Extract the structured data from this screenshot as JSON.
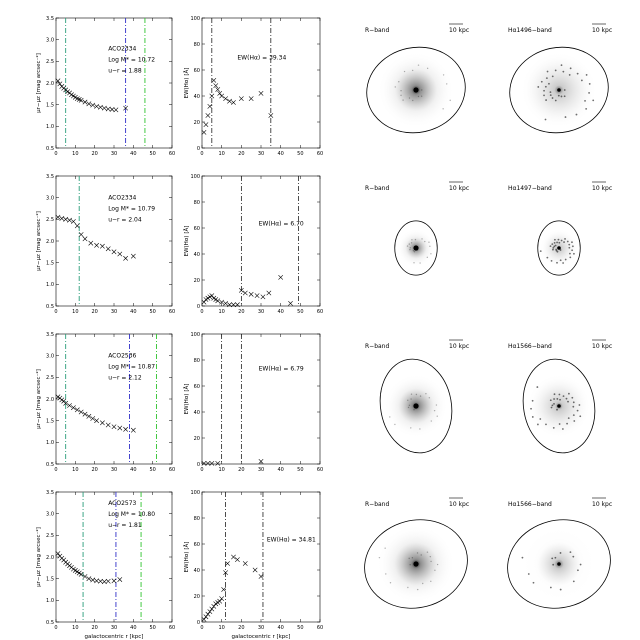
{
  "figure": {
    "x_axis_label": "galactocentric r [kpc]",
    "x_ticks": [
      "0",
      "10",
      "20",
      "30",
      "40",
      "50",
      "60"
    ],
    "color_ticks": [
      "0.5",
      "1.0",
      "1.5",
      "2.0",
      "2.5",
      "3.0",
      "3.5"
    ],
    "ew_ticks": [
      "0",
      "20",
      "40",
      "60",
      "80",
      "100"
    ],
    "color_ylabel": "μr−μz [mag arcsec⁻²]",
    "ew_ylabel": "EW(Hα) [Å]",
    "rows": [
      {
        "id": "ACO2334 (1)",
        "name": "ACO2334",
        "logm_label": "Log M* = 10.72",
        "ur_label": "u−r = 1.88",
        "ew_label": "EW(Hα) = 39.34",
        "r_band_label": "R−band",
        "ha_label": "Hα1496−band",
        "scale_label": "10 kpc",
        "ellipse": {
          "rx": 0.42,
          "ry": 0.36,
          "rot": -12
        },
        "ha_sparse": false,
        "color_vlines": [
          {
            "x": 5,
            "color": "#2a9d7a"
          },
          {
            "x": 36,
            "color": "#3030c8"
          },
          {
            "x": 46,
            "color": "#2ec42e"
          }
        ],
        "ew_vlines": [
          5,
          35
        ],
        "color_points": [
          [
            1,
            2.05
          ],
          [
            2,
            1.98
          ],
          [
            3,
            1.92
          ],
          [
            4,
            1.88
          ],
          [
            5,
            1.84
          ],
          [
            6,
            1.8
          ],
          [
            7,
            1.77
          ],
          [
            8,
            1.73
          ],
          [
            9,
            1.7
          ],
          [
            10,
            1.67
          ],
          [
            11,
            1.64
          ],
          [
            12,
            1.62
          ],
          [
            13,
            1.6
          ],
          [
            15,
            1.56
          ],
          [
            17,
            1.52
          ],
          [
            19,
            1.49
          ],
          [
            21,
            1.46
          ],
          [
            23,
            1.44
          ],
          [
            25,
            1.42
          ],
          [
            27,
            1.4
          ],
          [
            29,
            1.39
          ],
          [
            31,
            1.38
          ],
          [
            36,
            1.42
          ]
        ],
        "ew_points": [
          [
            1,
            12
          ],
          [
            2,
            18
          ],
          [
            3,
            25
          ],
          [
            4,
            32
          ],
          [
            5,
            40
          ],
          [
            6,
            52
          ],
          [
            7,
            48
          ],
          [
            8,
            45
          ],
          [
            9,
            42
          ],
          [
            10,
            40
          ],
          [
            12,
            38
          ],
          [
            14,
            36
          ],
          [
            16,
            35
          ],
          [
            20,
            38
          ],
          [
            25,
            38
          ],
          [
            30,
            42
          ],
          [
            35,
            25
          ]
        ]
      },
      {
        "id": "ACO2334 (2)",
        "name": "ACO2334",
        "logm_label": "Log M* = 10.79",
        "ur_label": "u−r = 2.04",
        "ew_label": "EW(Hα) = 6.70",
        "r_band_label": "R−band",
        "ha_label": "Hα1497−band",
        "scale_label": "10 kpc",
        "ellipse": {
          "rx": 0.18,
          "ry": 0.23,
          "rot": 0
        },
        "ha_sparse": false,
        "color_vlines": [
          {
            "x": 12,
            "color": "#2a9d7a"
          }
        ],
        "ew_vlines": [
          20,
          49
        ],
        "color_points": [
          [
            1,
            2.55
          ],
          [
            3,
            2.52
          ],
          [
            5,
            2.5
          ],
          [
            7,
            2.48
          ],
          [
            9,
            2.45
          ],
          [
            11,
            2.35
          ],
          [
            13,
            2.15
          ],
          [
            15,
            2.05
          ],
          [
            18,
            1.95
          ],
          [
            21,
            1.9
          ],
          [
            24,
            1.88
          ],
          [
            27,
            1.82
          ],
          [
            30,
            1.75
          ],
          [
            33,
            1.7
          ],
          [
            36,
            1.6
          ],
          [
            40,
            1.65
          ]
        ],
        "ew_points": [
          [
            1,
            3
          ],
          [
            2,
            5
          ],
          [
            3,
            6
          ],
          [
            4,
            7
          ],
          [
            5,
            8
          ],
          [
            6,
            6
          ],
          [
            7,
            5
          ],
          [
            8,
            4
          ],
          [
            10,
            3
          ],
          [
            12,
            2
          ],
          [
            14,
            1
          ],
          [
            16,
            1
          ],
          [
            18,
            1
          ],
          [
            20,
            12
          ],
          [
            22,
            10
          ],
          [
            25,
            9
          ],
          [
            28,
            8
          ],
          [
            31,
            7
          ],
          [
            34,
            10
          ],
          [
            40,
            22
          ],
          [
            45,
            2
          ]
        ]
      },
      {
        "id": "ACO2536",
        "name": "ACO2536",
        "logm_label": "Log M* = 10.87",
        "ur_label": "u−r = 2.12",
        "ew_label": "EW(Hα) = 6.79",
        "r_band_label": "R−band",
        "ha_label": "Hα1566−band",
        "scale_label": "10 kpc",
        "ellipse": {
          "rx": 0.3,
          "ry": 0.4,
          "rot": -10
        },
        "ha_sparse": false,
        "color_vlines": [
          {
            "x": 5,
            "color": "#2a9d7a"
          },
          {
            "x": 38,
            "color": "#3030c8"
          },
          {
            "x": 52,
            "color": "#2ec42e"
          }
        ],
        "ew_vlines": [
          10,
          20
        ],
        "color_points": [
          [
            1,
            2.05
          ],
          [
            2,
            2.02
          ],
          [
            3,
            1.98
          ],
          [
            4,
            1.95
          ],
          [
            5,
            1.9
          ],
          [
            7,
            1.85
          ],
          [
            9,
            1.8
          ],
          [
            11,
            1.75
          ],
          [
            13,
            1.7
          ],
          [
            15,
            1.65
          ],
          [
            17,
            1.6
          ],
          [
            19,
            1.55
          ],
          [
            21,
            1.5
          ],
          [
            24,
            1.45
          ],
          [
            27,
            1.4
          ],
          [
            30,
            1.36
          ],
          [
            33,
            1.33
          ],
          [
            36,
            1.3
          ],
          [
            40,
            1.28
          ]
        ],
        "ew_points": [
          [
            1,
            0.5
          ],
          [
            3,
            0.5
          ],
          [
            5,
            0.5
          ],
          [
            8,
            0.5
          ],
          [
            30,
            2
          ]
        ]
      },
      {
        "id": "ACO2573",
        "name": "ACO2573",
        "logm_label": "Log M* = 10.80",
        "ur_label": "u−r = 1.81",
        "ew_label": "EW(Hα) = 34.81",
        "r_band_label": "R−band",
        "ha_label": "Hα1566−band",
        "scale_label": "10 kpc",
        "ellipse": {
          "rx": 0.44,
          "ry": 0.37,
          "rot": -15
        },
        "ha_sparse": true,
        "color_vlines": [
          {
            "x": 14,
            "color": "#2a9d7a"
          },
          {
            "x": 31,
            "color": "#3030c8"
          },
          {
            "x": 44,
            "color": "#2ec42e"
          }
        ],
        "ew_vlines": [
          12,
          31
        ],
        "color_points": [
          [
            1,
            2.08
          ],
          [
            2,
            2.02
          ],
          [
            3,
            1.97
          ],
          [
            4,
            1.93
          ],
          [
            5,
            1.88
          ],
          [
            6,
            1.84
          ],
          [
            7,
            1.8
          ],
          [
            8,
            1.76
          ],
          [
            9,
            1.72
          ],
          [
            10,
            1.69
          ],
          [
            11,
            1.66
          ],
          [
            12,
            1.63
          ],
          [
            13,
            1.6
          ],
          [
            15,
            1.55
          ],
          [
            17,
            1.5
          ],
          [
            19,
            1.47
          ],
          [
            21,
            1.45
          ],
          [
            23,
            1.44
          ],
          [
            25,
            1.43
          ],
          [
            27,
            1.44
          ],
          [
            30,
            1.45
          ],
          [
            33,
            1.48
          ]
        ],
        "ew_points": [
          [
            1,
            2
          ],
          [
            2,
            4
          ],
          [
            3,
            6
          ],
          [
            4,
            8
          ],
          [
            5,
            10
          ],
          [
            6,
            12
          ],
          [
            7,
            14
          ],
          [
            8,
            15
          ],
          [
            9,
            16
          ],
          [
            10,
            18
          ],
          [
            11,
            25
          ],
          [
            12,
            38
          ],
          [
            13,
            45
          ],
          [
            16,
            50
          ],
          [
            18,
            48
          ],
          [
            22,
            45
          ],
          [
            27,
            40
          ],
          [
            30,
            35
          ]
        ]
      }
    ]
  }
}
